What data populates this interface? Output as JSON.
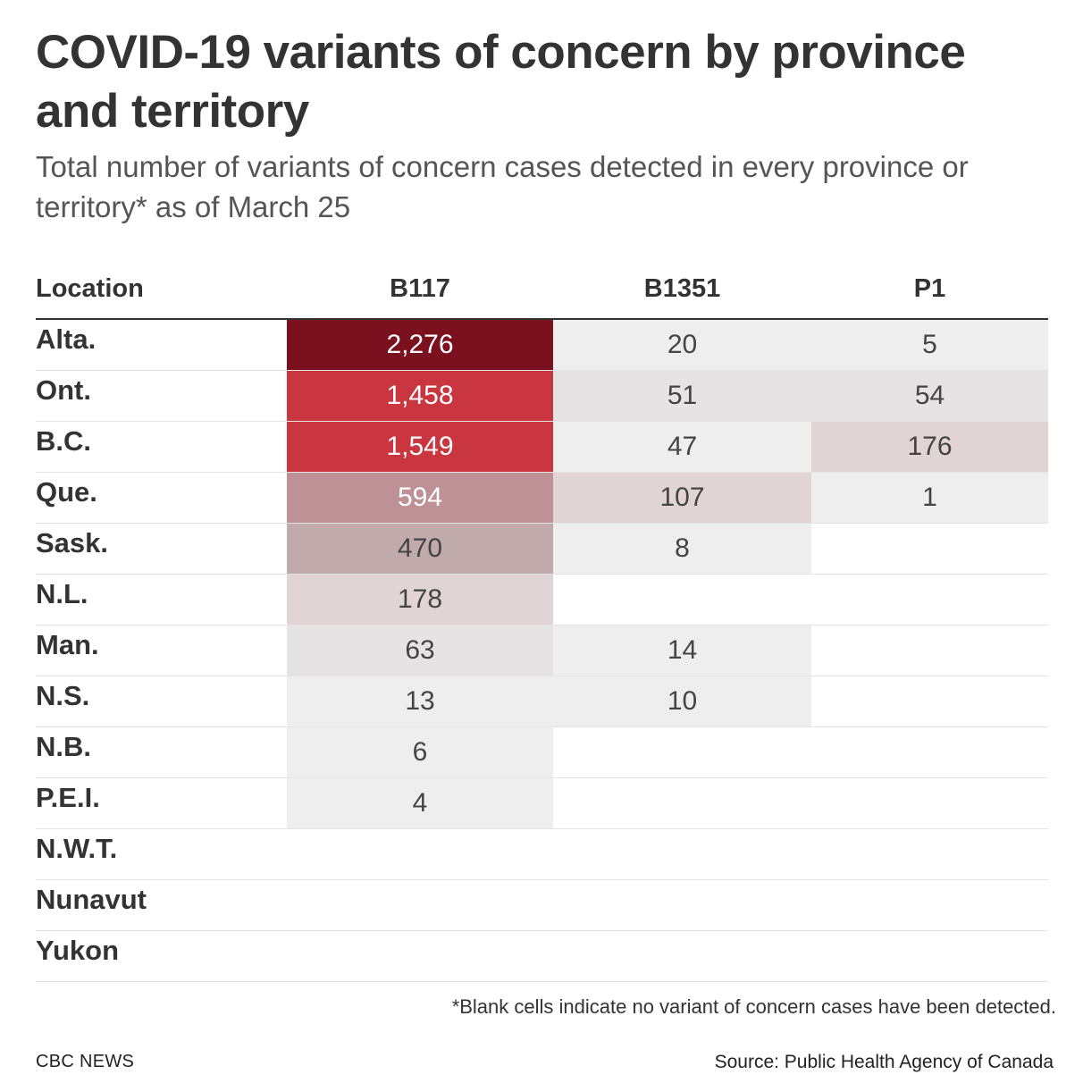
{
  "title": "COVID-19 variants of concern by province and territory",
  "subtitle": "Total number of variants of concern cases detected in every province or territory* as of March 25",
  "chart_data": {
    "type": "table",
    "columns": [
      "Location",
      "B117",
      "B1351",
      "P1"
    ],
    "rows": [
      {
        "location": "Alta.",
        "values": [
          "2,276",
          "20",
          "5"
        ]
      },
      {
        "location": "Ont.",
        "values": [
          "1,458",
          "51",
          "54"
        ]
      },
      {
        "location": "B.C.",
        "values": [
          "1,549",
          "47",
          "176"
        ]
      },
      {
        "location": "Que.",
        "values": [
          "594",
          "107",
          "1"
        ]
      },
      {
        "location": "Sask.",
        "values": [
          "470",
          "8",
          ""
        ]
      },
      {
        "location": "N.L.",
        "values": [
          "178",
          "",
          ""
        ]
      },
      {
        "location": "Man.",
        "values": [
          "63",
          "14",
          ""
        ]
      },
      {
        "location": "N.S.",
        "values": [
          "13",
          "10",
          ""
        ]
      },
      {
        "location": "N.B.",
        "values": [
          "6",
          "",
          ""
        ]
      },
      {
        "location": "P.E.I.",
        "values": [
          "4",
          "",
          ""
        ]
      },
      {
        "location": "N.W.T.",
        "values": [
          "",
          "",
          ""
        ]
      },
      {
        "location": "Nunavut",
        "values": [
          "",
          "",
          ""
        ]
      },
      {
        "location": "Yukon",
        "values": [
          "",
          "",
          ""
        ]
      }
    ]
  },
  "colors": {
    "scale": [
      {
        "min": 2000,
        "bg": "#7b111e",
        "fg": "#ffffff"
      },
      {
        "min": 1000,
        "bg": "#c9363f",
        "fg": "#ffffff"
      },
      {
        "min": 500,
        "bg": "#be9196",
        "fg": "#ffffff"
      },
      {
        "min": 300,
        "bg": "#c0aaac",
        "fg": "#444444"
      },
      {
        "min": 100,
        "bg": "#e0d4d5",
        "fg": "#444444"
      },
      {
        "min": 50,
        "bg": "#e6e3e4",
        "fg": "#444444"
      },
      {
        "min": 0,
        "bg": "#eeeeee",
        "fg": "#444444"
      }
    ]
  },
  "footnote": "*Blank cells indicate no variant of concern cases have been detected.",
  "brand": "CBC NEWS",
  "source": "Source: Public Health Agency of Canada"
}
